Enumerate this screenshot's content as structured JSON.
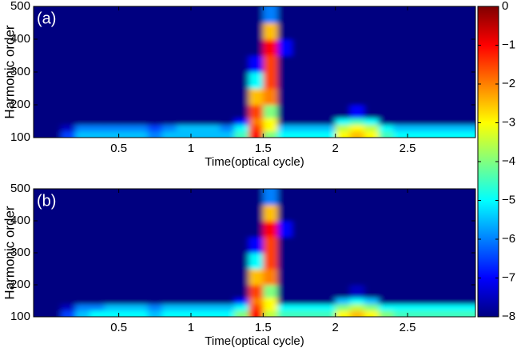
{
  "chart_data": [
    {
      "type": "heatmap",
      "annotation": "(a)",
      "xlabel": "Time(optical cycle)",
      "ylabel": "Harmonic order",
      "xlim": [
        -0.09,
        2.97
      ],
      "ylim": [
        100,
        500
      ],
      "xticks": [
        0.5,
        1,
        1.5,
        2,
        2.5
      ],
      "yticks": [
        100,
        200,
        300,
        400,
        500
      ],
      "xbins": [
        -0.09,
        0,
        0.1,
        0.2,
        0.3,
        0.4,
        0.5,
        0.6,
        0.7,
        0.8,
        0.9,
        1,
        1.1,
        1.2,
        1.3,
        1.4,
        1.5,
        1.6,
        1.7,
        1.8,
        1.9,
        2,
        2.1,
        2.2,
        2.3,
        2.4,
        2.5,
        2.6,
        2.7,
        2.8,
        2.9,
        2.97
      ],
      "ybins": [
        100,
        120,
        140,
        160,
        200,
        250,
        300,
        350,
        400,
        450,
        500
      ],
      "z": [
        [
          -8,
          -8,
          -6.5,
          -5.5,
          -5.5,
          -5.5,
          -5.5,
          -5.5,
          -6,
          -5.5,
          -5.5,
          -5.5,
          -5.5,
          -5.5,
          -4.5,
          -1,
          -4,
          -5,
          -5,
          -5,
          -5,
          -3,
          -2.5,
          -3,
          -4.5,
          -5,
          -5,
          -5,
          -5,
          -5,
          -5
        ],
        [
          -8,
          -8,
          -7.5,
          -6,
          -6,
          -6,
          -6,
          -6,
          -6.5,
          -6,
          -5.5,
          -5.5,
          -5.5,
          -6,
          -5,
          -1.5,
          -3,
          -5.5,
          -5.5,
          -5.5,
          -5.5,
          -3.5,
          -3,
          -3.5,
          -5,
          -5.5,
          -5.5,
          -5.5,
          -5.5,
          -5.5,
          -5.5
        ],
        [
          -8,
          -8,
          -8,
          -8,
          -8,
          -8,
          -8,
          -8,
          -8,
          -8,
          -8,
          -8,
          -8,
          -8,
          -7,
          -2,
          -3,
          -8,
          -8,
          -8,
          -8,
          -5,
          -4.5,
          -5,
          -8,
          -8,
          -8,
          -8,
          -8,
          -8,
          -8
        ],
        [
          -8,
          -8,
          -8,
          -8,
          -8,
          -8,
          -8,
          -8,
          -8,
          -8,
          -8,
          -8,
          -8,
          -8,
          -8,
          -1.5,
          -4,
          -8,
          -8,
          -8,
          -8,
          -8,
          -7,
          -8,
          -8,
          -8,
          -8,
          -8,
          -8,
          -8,
          -8
        ],
        [
          -8,
          -8,
          -8,
          -8,
          -8,
          -8,
          -8,
          -8,
          -8,
          -8,
          -8,
          -8,
          -8,
          -8,
          -8,
          -2.5,
          -2,
          -8,
          -8,
          -8,
          -8,
          -8,
          -8,
          -8,
          -8,
          -8,
          -8,
          -8,
          -8,
          -8,
          -8
        ],
        [
          -8,
          -8,
          -8,
          -8,
          -8,
          -8,
          -8,
          -8,
          -8,
          -8,
          -8,
          -8,
          -8,
          -8,
          -8,
          -5,
          -1.5,
          -8,
          -8,
          -8,
          -8,
          -8,
          -8,
          -8,
          -8,
          -8,
          -8,
          -8,
          -8,
          -8,
          -8
        ],
        [
          -8,
          -8,
          -8,
          -8,
          -8,
          -8,
          -8,
          -8,
          -8,
          -8,
          -8,
          -8,
          -8,
          -8,
          -8,
          -7,
          -1.5,
          -8,
          -8,
          -8,
          -8,
          -8,
          -8,
          -8,
          -8,
          -8,
          -8,
          -8,
          -8,
          -8,
          -8
        ],
        [
          -8,
          -8,
          -8,
          -8,
          -8,
          -8,
          -8,
          -8,
          -8,
          -8,
          -8,
          -8,
          -8,
          -8,
          -8,
          -8,
          -1,
          -7,
          -8,
          -8,
          -8,
          -8,
          -8,
          -8,
          -8,
          -8,
          -8,
          -8,
          -8,
          -8,
          -8
        ],
        [
          -8,
          -8,
          -8,
          -8,
          -8,
          -8,
          -8,
          -8,
          -8,
          -8,
          -8,
          -8,
          -8,
          -8,
          -8,
          -8,
          -2.5,
          -8,
          -8,
          -8,
          -8,
          -8,
          -8,
          -8,
          -8,
          -8,
          -8,
          -8,
          -8,
          -8,
          -8
        ],
        [
          -8,
          -8,
          -8,
          -8,
          -8,
          -8,
          -8,
          -8,
          -8,
          -8,
          -8,
          -8,
          -8,
          -8,
          -8,
          -8,
          -6,
          -8,
          -8,
          -8,
          -8,
          -8,
          -8,
          -8,
          -8,
          -8,
          -8,
          -8,
          -8,
          -8,
          -8
        ]
      ]
    },
    {
      "type": "heatmap",
      "annotation": "(b)",
      "xlabel": "Time(optical cycle)",
      "ylabel": "Harmonic order",
      "xlim": [
        -0.09,
        2.97
      ],
      "ylim": [
        100,
        500
      ],
      "xticks": [
        0.5,
        1,
        1.5,
        2,
        2.5
      ],
      "yticks": [
        100,
        200,
        300,
        400,
        500
      ],
      "xbins": [
        -0.09,
        0,
        0.1,
        0.2,
        0.3,
        0.4,
        0.5,
        0.6,
        0.7,
        0.8,
        0.9,
        1,
        1.1,
        1.2,
        1.3,
        1.4,
        1.5,
        1.6,
        1.7,
        1.8,
        1.9,
        2,
        2.1,
        2.2,
        2.3,
        2.4,
        2.5,
        2.6,
        2.7,
        2.8,
        2.9,
        2.97
      ],
      "ybins": [
        100,
        120,
        140,
        160,
        200,
        250,
        300,
        350,
        400,
        450,
        500
      ],
      "z": [
        [
          -8,
          -8,
          -6.5,
          -5.5,
          -5,
          -5,
          -5,
          -5,
          -5.5,
          -5,
          -5,
          -5,
          -5,
          -5,
          -4,
          -1,
          -3.5,
          -4.5,
          -4.5,
          -4.5,
          -4.5,
          -3,
          -2.5,
          -3,
          -4,
          -4.5,
          -4.5,
          -4.5,
          -4.5,
          -4.5,
          -4.5
        ],
        [
          -8,
          -8,
          -7.5,
          -6,
          -6,
          -5.5,
          -5.5,
          -5.5,
          -6,
          -5.5,
          -5.5,
          -5.5,
          -5.5,
          -5.5,
          -5,
          -1.5,
          -3,
          -5,
          -5,
          -5,
          -5,
          -4,
          -3.5,
          -4,
          -5,
          -5,
          -5,
          -5,
          -5,
          -5,
          -5
        ],
        [
          -8,
          -8,
          -8,
          -8,
          -8,
          -8,
          -8,
          -8,
          -8,
          -8,
          -8,
          -8,
          -8,
          -8,
          -7,
          -2,
          -3,
          -8,
          -8,
          -8,
          -8,
          -5.5,
          -5,
          -5.5,
          -8,
          -8,
          -8,
          -8,
          -8,
          -8,
          -8
        ],
        [
          -8,
          -8,
          -8,
          -8,
          -8,
          -8,
          -8,
          -8,
          -8,
          -8,
          -8,
          -8,
          -8,
          -8,
          -8,
          -1.5,
          -4,
          -8,
          -8,
          -8,
          -8,
          -8,
          -7.5,
          -8,
          -8,
          -8,
          -8,
          -8,
          -8,
          -8,
          -8
        ],
        [
          -8,
          -8,
          -8,
          -8,
          -8,
          -8,
          -8,
          -8,
          -8,
          -8,
          -8,
          -8,
          -8,
          -8,
          -8,
          -2.5,
          -2,
          -8,
          -8,
          -8,
          -8,
          -8,
          -8,
          -8,
          -8,
          -8,
          -8,
          -8,
          -8,
          -8,
          -8
        ],
        [
          -8,
          -8,
          -8,
          -8,
          -8,
          -8,
          -8,
          -8,
          -8,
          -8,
          -8,
          -8,
          -8,
          -8,
          -8,
          -5,
          -1.5,
          -8,
          -8,
          -8,
          -8,
          -8,
          -8,
          -8,
          -8,
          -8,
          -8,
          -8,
          -8,
          -8,
          -8
        ],
        [
          -8,
          -8,
          -8,
          -8,
          -8,
          -8,
          -8,
          -8,
          -8,
          -8,
          -8,
          -8,
          -8,
          -8,
          -8,
          -7,
          -1.5,
          -8,
          -8,
          -8,
          -8,
          -8,
          -8,
          -8,
          -8,
          -8,
          -8,
          -8,
          -8,
          -8,
          -8
        ],
        [
          -8,
          -8,
          -8,
          -8,
          -8,
          -8,
          -8,
          -8,
          -8,
          -8,
          -8,
          -8,
          -8,
          -8,
          -8,
          -8,
          -1,
          -7,
          -8,
          -8,
          -8,
          -8,
          -8,
          -8,
          -8,
          -8,
          -8,
          -8,
          -8,
          -8,
          -8
        ],
        [
          -8,
          -8,
          -8,
          -8,
          -8,
          -8,
          -8,
          -8,
          -8,
          -8,
          -8,
          -8,
          -8,
          -8,
          -8,
          -8,
          -2.5,
          -8,
          -8,
          -8,
          -8,
          -8,
          -8,
          -8,
          -8,
          -8,
          -8,
          -8,
          -8,
          -8,
          -8
        ],
        [
          -8,
          -8,
          -8,
          -8,
          -8,
          -8,
          -8,
          -8,
          -8,
          -8,
          -8,
          -8,
          -8,
          -8,
          -8,
          -8,
          -6,
          -8,
          -8,
          -8,
          -8,
          -8,
          -8,
          -8,
          -8,
          -8,
          -8,
          -8,
          -8,
          -8,
          -8
        ]
      ]
    }
  ],
  "colorbar": {
    "clim": [
      -8,
      0
    ],
    "ticks": [
      0,
      {
        "value": -1,
        "label": "−1"
      },
      {
        "value": -2,
        "label": "−2"
      },
      {
        "value": -3,
        "label": "−3"
      },
      {
        "value": -4,
        "label": "−4"
      },
      {
        "value": -5,
        "label": "−5"
      },
      {
        "value": -6,
        "label": "−6"
      },
      {
        "value": -7,
        "label": "−7"
      },
      {
        "value": -8,
        "label": "−8"
      }
    ]
  }
}
